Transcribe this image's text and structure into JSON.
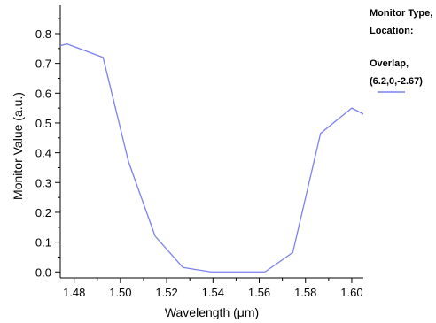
{
  "chart_data": {
    "type": "line",
    "xlabel": "Wavelength (μm)",
    "ylabel": "Monitor Value (a.u.)",
    "xlim": [
      1.474,
      1.605
    ],
    "ylim": [
      -0.02,
      0.895
    ],
    "x_ticks": [
      1.48,
      1.5,
      1.52,
      1.54,
      1.56,
      1.58,
      1.6
    ],
    "x_tick_labels": [
      "1.48",
      "1.50",
      "1.52",
      "1.54",
      "1.56",
      "1.58",
      "1.60"
    ],
    "y_ticks": [
      0.0,
      0.1,
      0.2,
      0.3,
      0.4,
      0.5,
      0.6,
      0.7,
      0.8
    ],
    "y_tick_labels": [
      "0.0",
      "0.1",
      "0.2",
      "0.3",
      "0.4",
      "0.5",
      "0.6",
      "0.7",
      "0.8"
    ],
    "grid": false,
    "legend_position": "right",
    "legend_header": [
      "Monitor Type,",
      "Location:"
    ],
    "series": [
      {
        "name": "Overlap, (6.2,0,-2.67)",
        "legend_lines": [
          "Overlap,",
          "(6.2,0,-2.67)"
        ],
        "color": "#7b80f0",
        "x": [
          1.474,
          1.477,
          1.4925,
          1.5035,
          1.515,
          1.527,
          1.539,
          1.551,
          1.5625,
          1.5745,
          1.5865,
          1.6,
          1.605
        ],
        "y": [
          0.76,
          0.765,
          0.72,
          0.37,
          0.12,
          0.015,
          0.0,
          0.0,
          0.0,
          0.065,
          0.465,
          0.55,
          0.53
        ]
      }
    ]
  }
}
